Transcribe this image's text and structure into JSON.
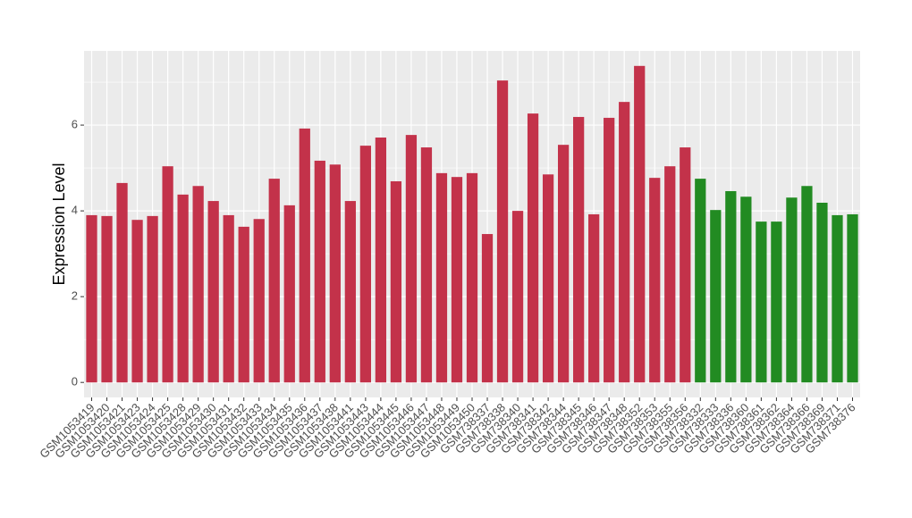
{
  "chart_data": {
    "type": "bar",
    "y_label": "Expression Level",
    "categories": [
      "GSM1053419",
      "GSM1053420",
      "GSM1053421",
      "GSM1053423",
      "GSM1053424",
      "GSM1053425",
      "GSM1053428",
      "GSM1053429",
      "GSM1053430",
      "GSM1053431",
      "GSM1053432",
      "GSM1053433",
      "GSM1053434",
      "GSM1053435",
      "GSM1053436",
      "GSM1053437",
      "GSM1053438",
      "GSM1053441",
      "GSM1053443",
      "GSM1053444",
      "GSM1053445",
      "GSM1053446",
      "GSM1053447",
      "GSM1053448",
      "GSM1053449",
      "GSM1053450",
      "GSM738337",
      "GSM738338",
      "GSM738340",
      "GSM738341",
      "GSM738342",
      "GSM738344",
      "GSM738345",
      "GSM738346",
      "GSM738347",
      "GSM738348",
      "GSM738352",
      "GSM738353",
      "GSM738355",
      "GSM738356",
      "GSM738332",
      "GSM738333",
      "GSM738336",
      "GSM738360",
      "GSM738361",
      "GSM738362",
      "GSM738364",
      "GSM738366",
      "GSM738369",
      "GSM738371",
      "GSM738376"
    ],
    "values": [
      3.9,
      3.88,
      4.65,
      3.79,
      3.88,
      5.04,
      4.38,
      4.58,
      4.23,
      3.9,
      3.63,
      3.81,
      4.75,
      4.13,
      5.92,
      5.17,
      5.08,
      4.23,
      5.52,
      5.71,
      4.69,
      5.77,
      5.48,
      4.88,
      4.79,
      4.88,
      3.46,
      7.04,
      4.0,
      6.27,
      4.85,
      5.54,
      6.19,
      3.92,
      6.17,
      6.54,
      7.38,
      4.77,
      5.04,
      5.48,
      4.75,
      4.02,
      4.46,
      4.33,
      3.75,
      3.75,
      4.31,
      4.58,
      4.19,
      3.9,
      3.92
    ],
    "bar_colors": [
      "#c3324a",
      "#c3324a",
      "#c3324a",
      "#c3324a",
      "#c3324a",
      "#c3324a",
      "#c3324a",
      "#c3324a",
      "#c3324a",
      "#c3324a",
      "#c3324a",
      "#c3324a",
      "#c3324a",
      "#c3324a",
      "#c3324a",
      "#c3324a",
      "#c3324a",
      "#c3324a",
      "#c3324a",
      "#c3324a",
      "#c3324a",
      "#c3324a",
      "#c3324a",
      "#c3324a",
      "#c3324a",
      "#c3324a",
      "#c3324a",
      "#c3324a",
      "#c3324a",
      "#c3324a",
      "#c3324a",
      "#c3324a",
      "#c3324a",
      "#c3324a",
      "#c3324a",
      "#c3324a",
      "#c3324a",
      "#c3324a",
      "#c3324a",
      "#c3324a",
      "#228b22",
      "#228b22",
      "#228b22",
      "#228b22",
      "#228b22",
      "#228b22",
      "#228b22",
      "#228b22",
      "#228b22",
      "#228b22",
      "#228b22"
    ],
    "ylim": [
      -0.35,
      7.73
    ],
    "yticks": [
      0,
      2,
      4,
      6
    ],
    "minor_yticks": [
      1,
      3,
      5,
      7
    ],
    "grid": true
  }
}
